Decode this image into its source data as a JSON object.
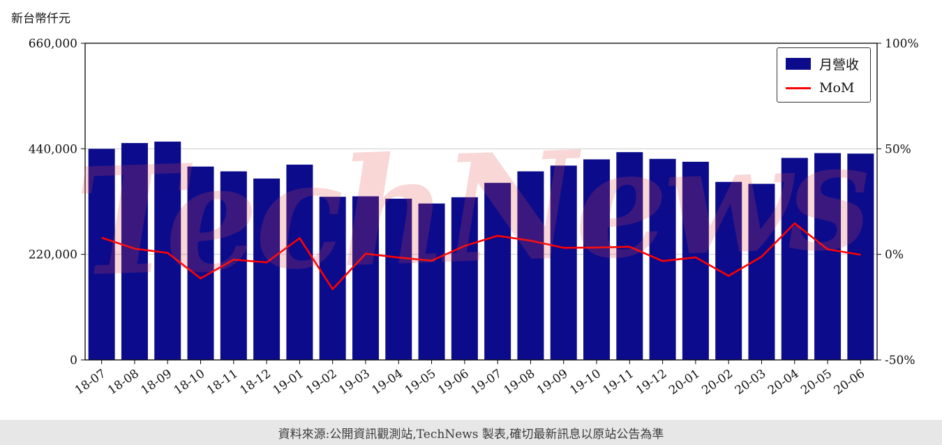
{
  "chart_data": {
    "type": "bar",
    "subtype": "combo-bar-line",
    "title": "",
    "categories": [
      "18-07",
      "18-08",
      "18-09",
      "18-10",
      "18-11",
      "18-12",
      "19-01",
      "19-02",
      "19-03",
      "19-04",
      "19-05",
      "19-06",
      "19-07",
      "19-08",
      "19-09",
      "19-10",
      "19-11",
      "19-12",
      "20-01",
      "20-02",
      "20-03",
      "20-04",
      "20-05",
      "20-06"
    ],
    "series_bar": {
      "name": "月營收",
      "color": "#0b0b8c",
      "values": [
        440000,
        452000,
        455000,
        403000,
        393000,
        378000,
        407000,
        340000,
        341000,
        336000,
        326000,
        339000,
        369000,
        393000,
        405000,
        418000,
        433000,
        419000,
        413000,
        371000,
        367000,
        421000,
        431000,
        430000
      ]
    },
    "series_line": {
      "name": "MoM",
      "color": "#ff0000",
      "values": [
        7.9,
        2.7,
        0.7,
        -11.4,
        -2.5,
        -3.8,
        7.7,
        -16.5,
        0.3,
        -1.5,
        -3.0,
        4.0,
        8.8,
        6.5,
        3.1,
        3.2,
        3.6,
        -3.2,
        -1.4,
        -10.2,
        -1.1,
        14.7,
        2.4,
        -0.2
      ]
    },
    "left_axis": {
      "title": "新台幣仟元",
      "min": 0,
      "max": 660000,
      "ticks": [
        0,
        220000,
        440000,
        660000
      ]
    },
    "right_axis": {
      "min": -50,
      "max": 100,
      "ticks": [
        -50,
        0,
        50,
        100
      ],
      "suffix": "%"
    },
    "legend_position": "top-right",
    "grid": true
  },
  "watermark": {
    "text": "TechNews"
  },
  "footer": {
    "text": "資料來源:公開資訊觀測站,TechNews 製表,確切最新訊息以原站公告為準"
  }
}
